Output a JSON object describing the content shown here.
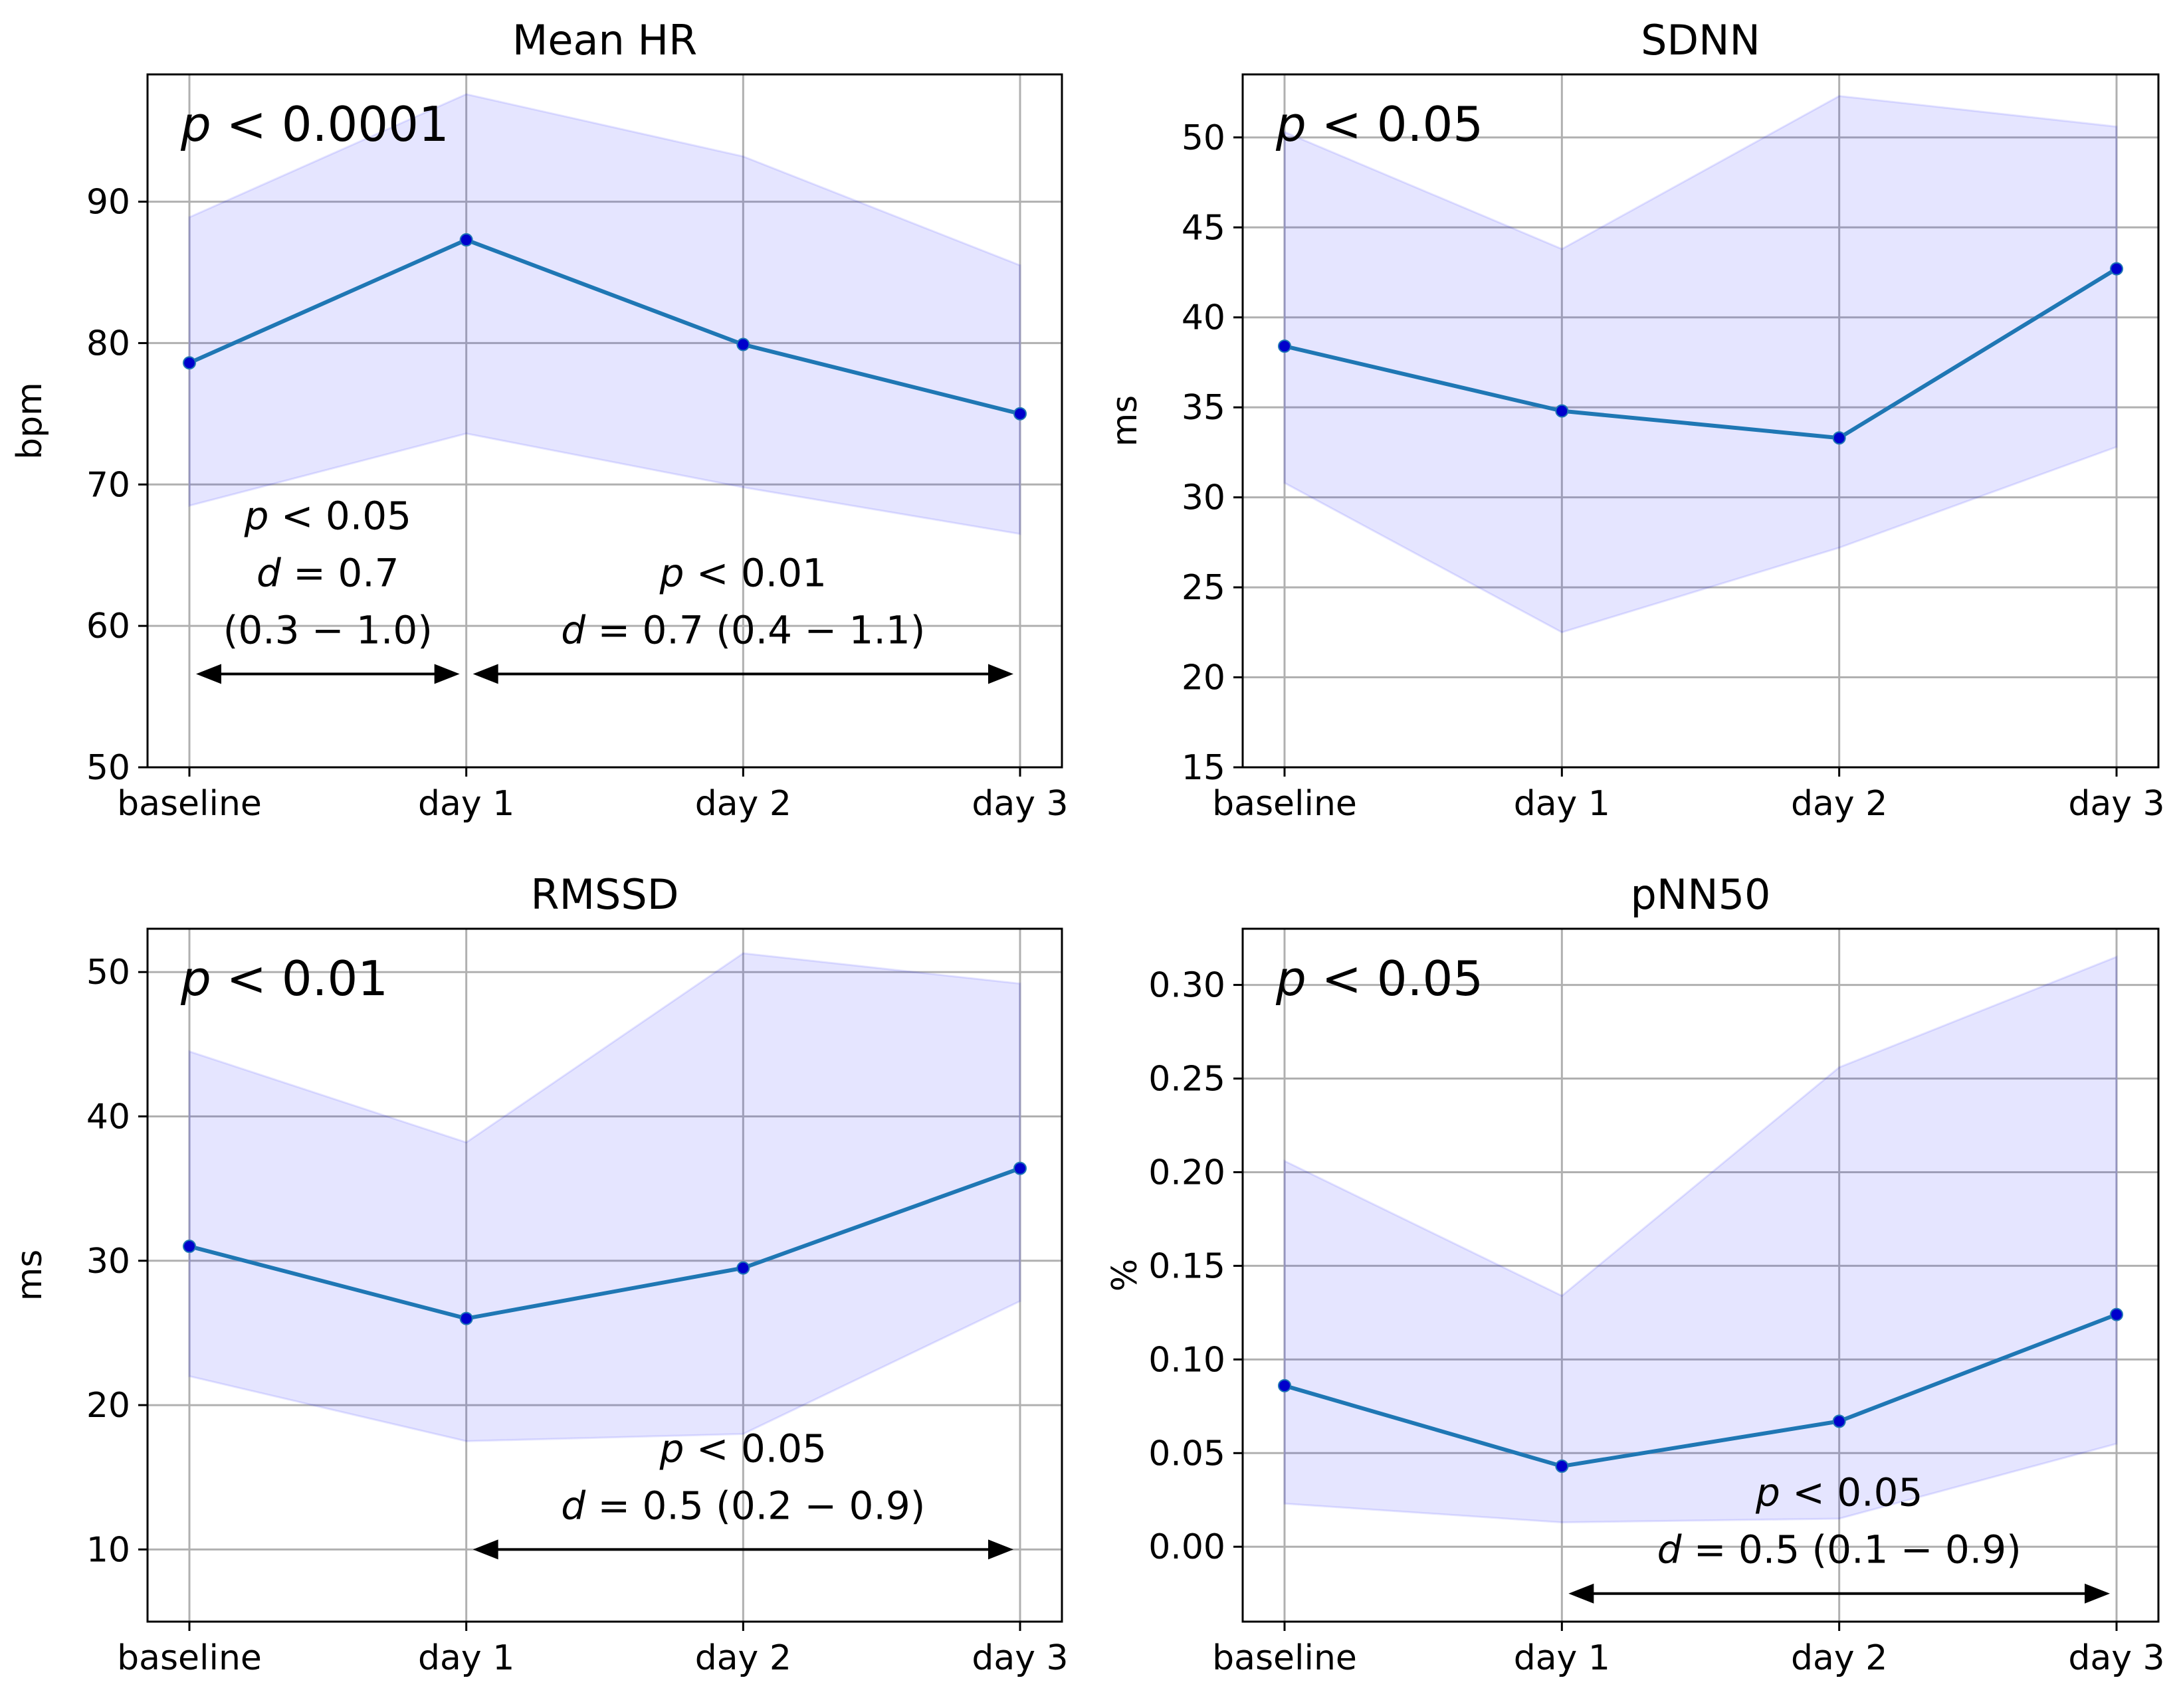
{
  "chart_data": [
    {
      "type": "line",
      "title": "Mean HR",
      "ylabel": "bpm",
      "categories": [
        "baseline",
        "day 1",
        "day 2",
        "day 3"
      ],
      "ylim": [
        50,
        99
      ],
      "yticks": [
        50,
        60,
        70,
        80,
        90
      ],
      "grid": true,
      "series": [
        {
          "name": "mean",
          "values": [
            78.6,
            87.3,
            79.9,
            75.0
          ]
        }
      ],
      "band": {
        "lower": [
          68.5,
          73.6,
          69.8,
          66.5
        ],
        "upper": [
          88.9,
          97.6,
          93.2,
          85.5
        ]
      },
      "main_p": {
        "sym": "p",
        "rest": " < 0.0001"
      },
      "annotations": [
        {
          "from": 0,
          "to": 1,
          "y": 56.6,
          "lines": [
            {
              "sym": "p",
              "rest": " < 0.05"
            },
            {
              "sym": "d",
              "rest": " = 0.7"
            },
            {
              "sym": "",
              "rest": "(0.3 − 1.0)"
            }
          ]
        },
        {
          "from": 1,
          "to": 3,
          "y": 56.6,
          "lines": [
            {
              "sym": "p",
              "rest": " < 0.01"
            },
            {
              "sym": "d",
              "rest": " = 0.7 (0.4 − 1.1)"
            }
          ]
        }
      ]
    },
    {
      "type": "line",
      "title": "SDNN",
      "ylabel": "ms",
      "categories": [
        "baseline",
        "day 1",
        "day 2",
        "day 3"
      ],
      "ylim": [
        15,
        53.5
      ],
      "yticks": [
        15,
        20,
        25,
        30,
        35,
        40,
        45,
        50
      ],
      "grid": true,
      "series": [
        {
          "name": "mean",
          "values": [
            38.4,
            34.8,
            33.3,
            42.7
          ]
        }
      ],
      "band": {
        "lower": [
          30.8,
          22.5,
          27.2,
          32.8
        ],
        "upper": [
          50.3,
          43.8,
          52.3,
          50.6
        ]
      },
      "main_p": {
        "sym": "p",
        "rest": " < 0.05"
      },
      "annotations": []
    },
    {
      "type": "line",
      "title": "RMSSD",
      "ylabel": "ms",
      "categories": [
        "baseline",
        "day 1",
        "day 2",
        "day 3"
      ],
      "ylim": [
        5,
        53
      ],
      "yticks": [
        10,
        20,
        30,
        40,
        50
      ],
      "grid": true,
      "series": [
        {
          "name": "mean",
          "values": [
            31.0,
            26.0,
            29.5,
            36.4
          ]
        }
      ],
      "band": {
        "lower": [
          22.0,
          17.5,
          18.0,
          27.2
        ],
        "upper": [
          44.5,
          38.2,
          51.3,
          49.2
        ]
      },
      "main_p": {
        "sym": "p",
        "rest": " < 0.01"
      },
      "annotations": [
        {
          "from": 1,
          "to": 3,
          "y": 10.0,
          "lines": [
            {
              "sym": "p",
              "rest": " < 0.05"
            },
            {
              "sym": "d",
              "rest": " = 0.5 (0.2 − 0.9)"
            }
          ]
        }
      ]
    },
    {
      "type": "line",
      "title": "pNN50",
      "ylabel": "%",
      "categories": [
        "baseline",
        "day 1",
        "day 2",
        "day 3"
      ],
      "ylim": [
        -0.04,
        0.33
      ],
      "yticks": [
        0.0,
        0.05,
        0.1,
        0.15,
        0.2,
        0.25,
        0.3
      ],
      "ytick_decimals": 2,
      "grid": true,
      "series": [
        {
          "name": "mean",
          "values": [
            0.086,
            0.043,
            0.067,
            0.124
          ]
        }
      ],
      "band": {
        "lower": [
          0.023,
          0.013,
          0.015,
          0.055
        ],
        "upper": [
          0.206,
          0.134,
          0.256,
          0.315
        ]
      },
      "main_p": {
        "sym": "p",
        "rest": " < 0.05"
      },
      "annotations": [
        {
          "from": 1,
          "to": 3,
          "y": -0.025,
          "lines": [
            {
              "sym": "p",
              "rest": " < 0.05"
            },
            {
              "sym": "d",
              "rest": " = 0.5 (0.1 − 0.9)"
            }
          ]
        }
      ]
    }
  ]
}
